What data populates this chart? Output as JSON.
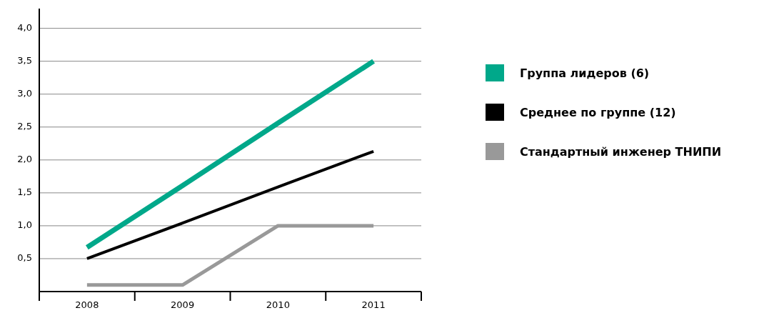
{
  "chart_data": {
    "type": "line",
    "categories": [
      "2008",
      "2009",
      "2010",
      "2011"
    ],
    "series": [
      {
        "name": "Группа лидеров (6)",
        "color": "#00a88a",
        "values": [
          0.67,
          1.61,
          2.56,
          3.5
        ]
      },
      {
        "name": "Среднее по группе (12)",
        "color": "#000000",
        "values": [
          0.5,
          1.04,
          1.59,
          2.13
        ]
      },
      {
        "name": "Стандартный инженер ТНИПИ",
        "color": "#999999",
        "values": [
          0.1,
          0.1,
          1.0,
          1.0
        ]
      }
    ],
    "ylim": [
      0,
      4.3
    ],
    "yticks": [
      {
        "value": 0.5,
        "label": "0,5"
      },
      {
        "value": 1,
        "label": "1,0"
      },
      {
        "value": 1.5,
        "label": "1,5"
      },
      {
        "value": 2,
        "label": "2,0"
      },
      {
        "value": 2.5,
        "label": "2,5"
      },
      {
        "value": 3,
        "label": "3,0"
      },
      {
        "value": 3.5,
        "label": "3,5"
      },
      {
        "value": 4,
        "label": "4,0"
      }
    ],
    "grid": "y",
    "legend": "right",
    "marker": "none",
    "line_style": "solid"
  }
}
